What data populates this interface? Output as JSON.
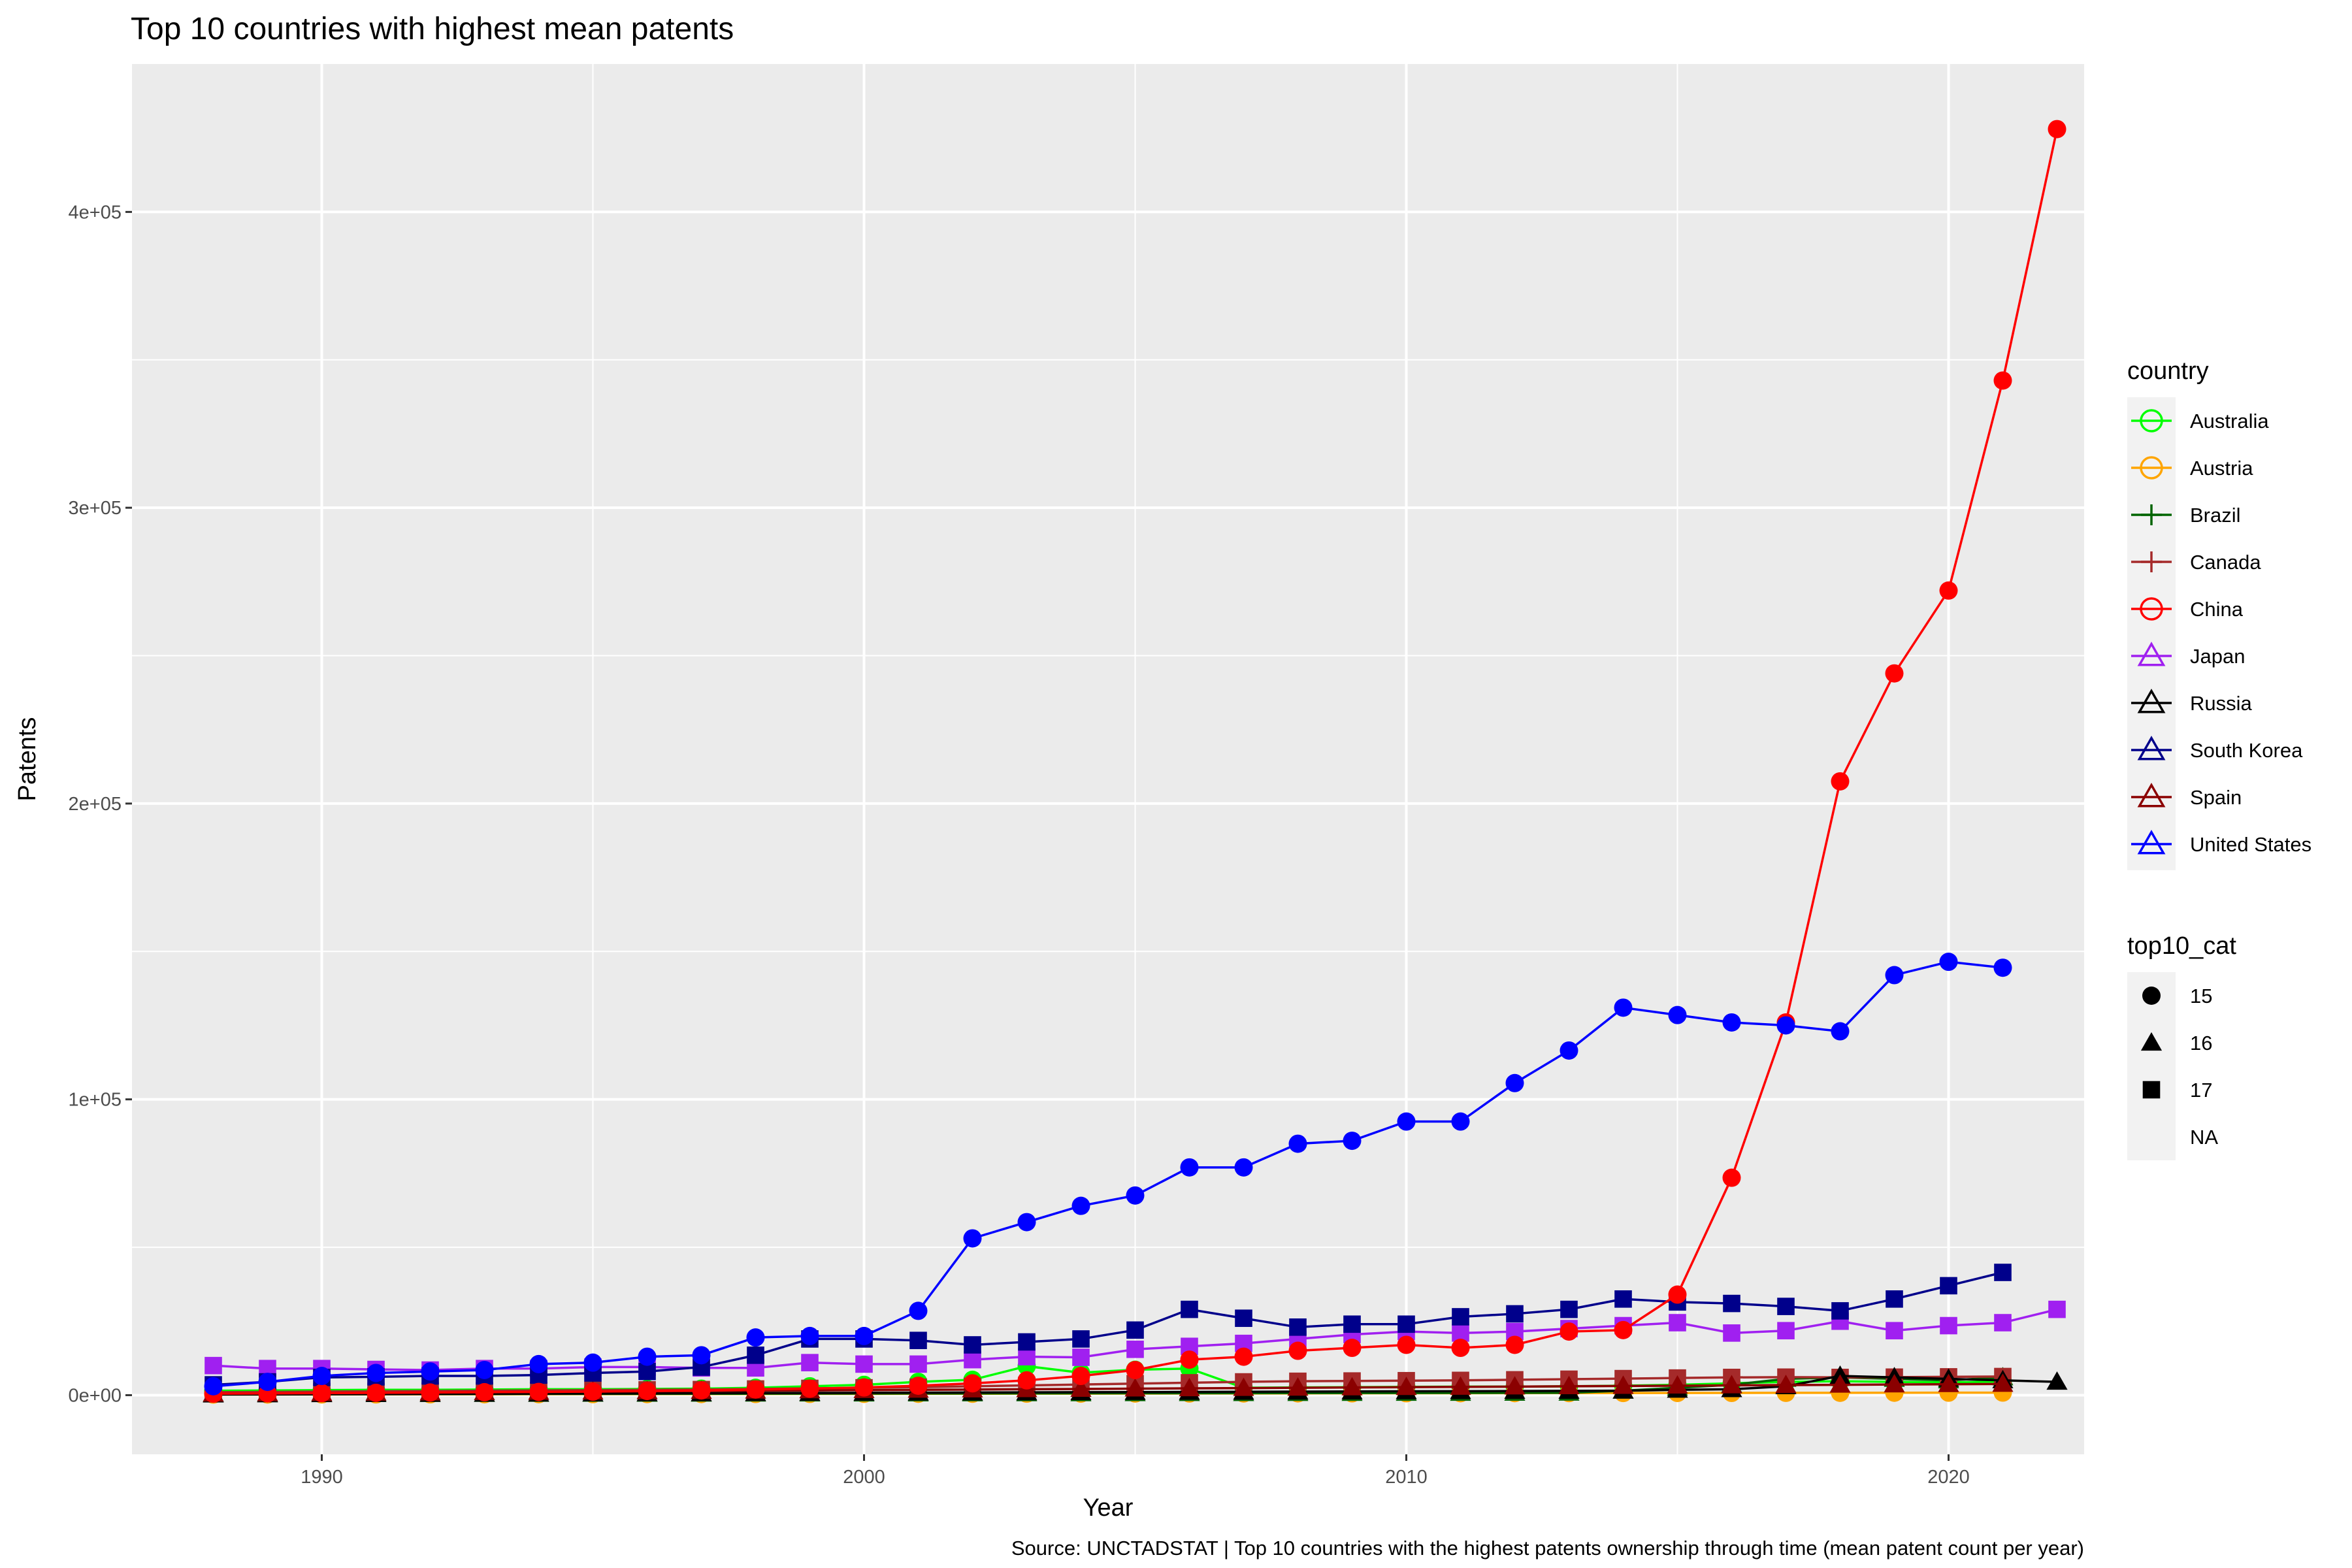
{
  "chart_data": {
    "type": "line",
    "title": "Top 10 countries with highest mean patents",
    "xlabel": "Year",
    "ylabel": "Patents",
    "caption": "Source: UNCTADSTAT | Top 10 countries with the highest patents ownership through time (mean patent count per year)",
    "xlim": [
      1986.5,
      2022.5
    ],
    "ylim": [
      -20000,
      450000
    ],
    "x_ticks": [
      {
        "value": 1990,
        "label": "1990"
      },
      {
        "value": 2000,
        "label": "2000"
      },
      {
        "value": 2010,
        "label": "2010"
      },
      {
        "value": 2020,
        "label": "2020"
      }
    ],
    "y_ticks": [
      {
        "value": 0,
        "label": "0e+00"
      },
      {
        "value": 100000,
        "label": "1e+05"
      },
      {
        "value": 200000,
        "label": "2e+05"
      },
      {
        "value": 300000,
        "label": "3e+05"
      },
      {
        "value": 400000,
        "label": "4e+05"
      }
    ],
    "legend_country_title": "country",
    "legend_shape_title": "top10_cat",
    "series": [
      {
        "name": "Australia",
        "color": "#00FF00",
        "marker_hint": "circle",
        "x_start": 1988,
        "values": [
          1500,
          1600,
          1700,
          1800,
          1800,
          1900,
          2000,
          2000,
          2100,
          2200,
          2500,
          3000,
          3500,
          4500,
          5200,
          9800,
          7600,
          8600,
          9000,
          2500,
          2600,
          2700,
          2800,
          2900,
          2900,
          3000,
          3200,
          3500,
          4000,
          4500,
          4700,
          4500,
          4300,
          4600
        ]
      },
      {
        "name": "Austria",
        "color": "#FFA500",
        "marker_hint": "circle",
        "x_start": 1988,
        "values": [
          200,
          220,
          240,
          260,
          280,
          300,
          320,
          340,
          360,
          380,
          400,
          420,
          440,
          460,
          480,
          500,
          520,
          540,
          560,
          580,
          600,
          620,
          640,
          660,
          680,
          700,
          720,
          740,
          760,
          780,
          800,
          820,
          840,
          860
        ]
      },
      {
        "name": "Brazil",
        "color": "#006400",
        "marker_hint": "plus",
        "x_start": 1988,
        "values": [
          300,
          320,
          340,
          360,
          380,
          400,
          420,
          440,
          460,
          480,
          500,
          520,
          540,
          560,
          580,
          600,
          620,
          640,
          660,
          680,
          700,
          720,
          740,
          760,
          780,
          800,
          1500,
          2500,
          3500,
          5500,
          6000,
          5500,
          5000,
          6000
        ]
      },
      {
        "name": "Canada",
        "color": "#A52A2A",
        "marker_hint": "plus",
        "x_start": 1988,
        "values": [
          1000,
          1100,
          1200,
          1300,
          1400,
          1500,
          1600,
          1700,
          1800,
          1900,
          2100,
          2300,
          2500,
          2700,
          3000,
          3300,
          3600,
          3900,
          4200,
          4500,
          4700,
          4800,
          4900,
          5000,
          5200,
          5400,
          5600,
          5800,
          6000,
          6100,
          6000,
          6100,
          6200,
          6300
        ]
      },
      {
        "name": "China",
        "color": "#FF0000",
        "marker_hint": "circle",
        "x_start": 1988,
        "values": [
          500,
          600,
          700,
          800,
          900,
          1000,
          1100,
          1200,
          1400,
          1600,
          1900,
          2200,
          2600,
          3200,
          4000,
          5000,
          6500,
          8500,
          12000,
          13000,
          15000,
          16000,
          17000,
          16000,
          17000,
          21500,
          22000,
          34000,
          73500,
          126000,
          207500,
          244000,
          272000,
          343000,
          428000
        ]
      },
      {
        "name": "Japan",
        "color": "#A020F0",
        "marker_hint": "triangle",
        "x_start": 1988,
        "values": [
          10000,
          9000,
          9000,
          8700,
          8500,
          9000,
          9000,
          9500,
          9500,
          9200,
          9200,
          11000,
          10500,
          10500,
          12000,
          13000,
          12800,
          15500,
          16500,
          17500,
          19000,
          20500,
          21500,
          21000,
          21500,
          22500,
          23500,
          24500,
          21000,
          21800,
          25000,
          21800,
          23500,
          24500,
          29000
        ]
      },
      {
        "name": "Russia",
        "color": "#000000",
        "marker_hint": "triangle",
        "x_start": 1988,
        "values": [
          200,
          250,
          300,
          350,
          400,
          450,
          500,
          550,
          600,
          650,
          700,
          750,
          800,
          850,
          900,
          950,
          1000,
          1050,
          1100,
          1150,
          1200,
          1250,
          1300,
          1350,
          1400,
          1450,
          1500,
          1800,
          2000,
          3000,
          6500,
          6000,
          5500,
          5000,
          4500
        ]
      },
      {
        "name": "South Korea",
        "color": "#00008B",
        "marker_hint": "triangle",
        "x_start": 1988,
        "values": [
          3500,
          4500,
          6000,
          6200,
          6500,
          6500,
          6800,
          7500,
          8000,
          9500,
          13500,
          19000,
          19000,
          18500,
          17000,
          18000,
          19000,
          22000,
          29000,
          26000,
          23000,
          24000,
          24000,
          26500,
          27500,
          29000,
          32500,
          31500,
          31000,
          30000,
          28500,
          32500,
          37000,
          41500
        ]
      },
      {
        "name": "Spain",
        "color": "#8B0000",
        "marker_hint": "triangle",
        "x_start": 1988,
        "values": [
          500,
          600,
          700,
          800,
          900,
          1000,
          1100,
          1200,
          1300,
          1400,
          1500,
          1600,
          1700,
          1800,
          1900,
          2000,
          2100,
          2200,
          2300,
          2400,
          2500,
          2600,
          2700,
          2800,
          2900,
          3000,
          3100,
          3200,
          3300,
          3400,
          3500,
          3600,
          3700,
          3800
        ]
      },
      {
        "name": "United States",
        "color": "#0000FF",
        "marker_hint": "triangle",
        "x_start": 1988,
        "values": [
          3000,
          4500,
          6500,
          7500,
          8000,
          8500,
          10500,
          11000,
          13000,
          13500,
          19500,
          20000,
          20000,
          28500,
          53000,
          58500,
          64000,
          67500,
          77000,
          77000,
          85000,
          86000,
          92500,
          92500,
          105500,
          116500,
          131000,
          128500,
          126000,
          125000,
          123000,
          142000,
          146500,
          144500
        ]
      }
    ],
    "shape_legend": [
      {
        "label": "15",
        "shape": "circle"
      },
      {
        "label": "16",
        "shape": "triangle"
      },
      {
        "label": "17",
        "shape": "square"
      },
      {
        "label": "NA",
        "shape": "none"
      }
    ]
  }
}
